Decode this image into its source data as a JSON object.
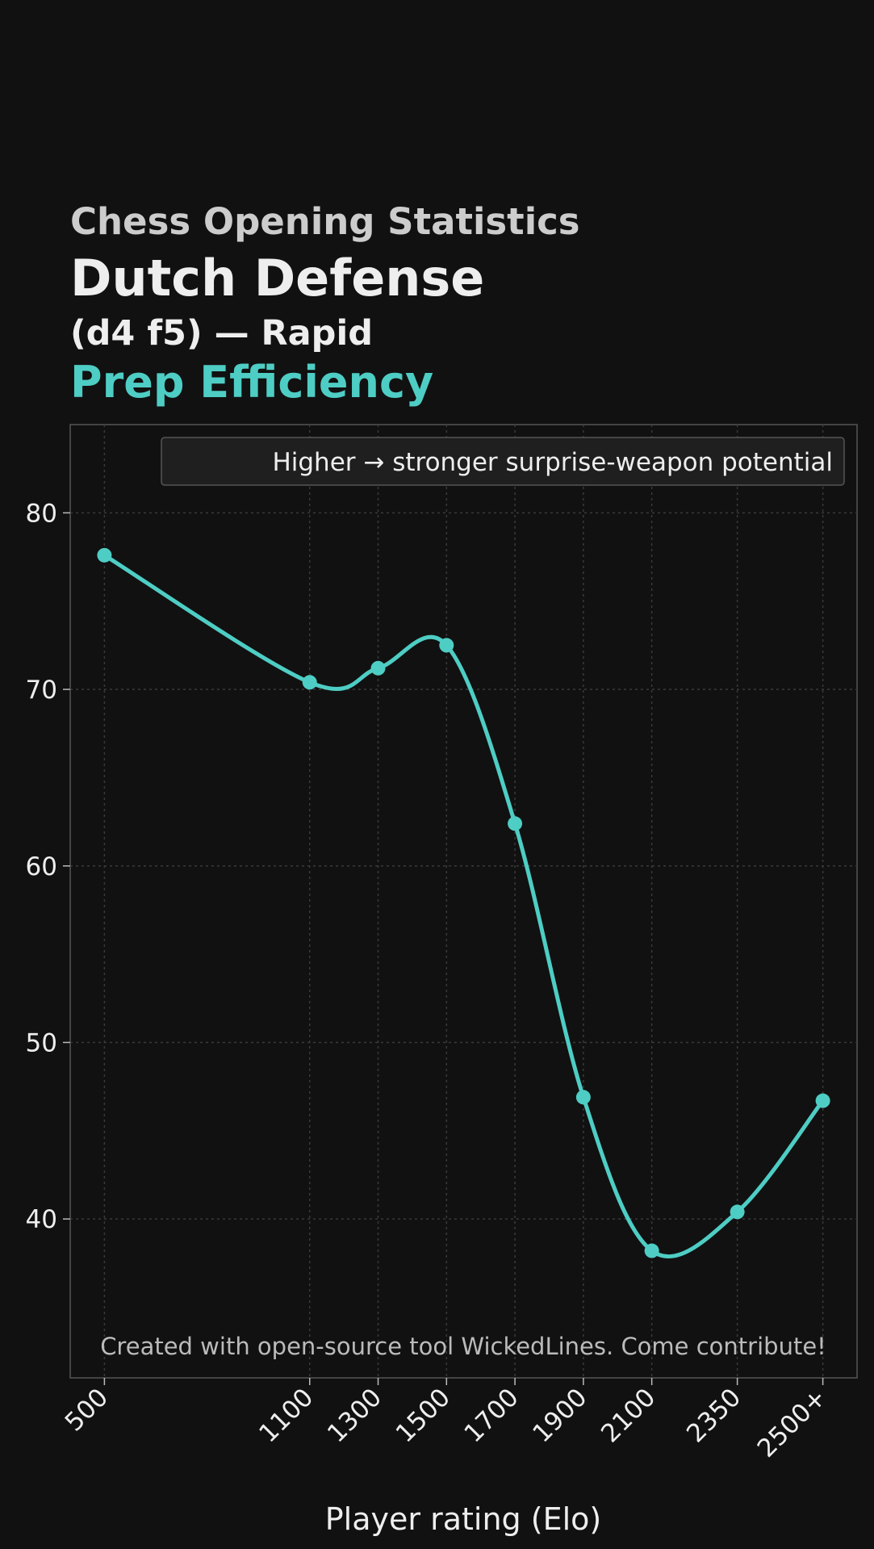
{
  "header": {
    "supertitle": "Chess Opening Statistics",
    "title": "Dutch Defense",
    "subtitle": "(d4 f5) — Rapid",
    "metric": "Prep Efficiency"
  },
  "colors": {
    "background": "#111111",
    "line": "#4ecdc4",
    "grid": "#3a3a3a",
    "frame": "#555555",
    "text": "#eeeeee",
    "watermark": "#bbbbbb"
  },
  "chart_data": {
    "type": "line",
    "title": "Prep Efficiency",
    "xlabel": "Player rating (Elo)",
    "ylabel": "",
    "x_numeric": [
      500,
      1100,
      1300,
      1500,
      1700,
      1900,
      2100,
      2350,
      2600
    ],
    "categories": [
      "500",
      "1100",
      "1300",
      "1500",
      "1700",
      "1900",
      "2100",
      "2350",
      "2500+"
    ],
    "series": [
      {
        "values": [
          77.6,
          70.4,
          71.2,
          72.5,
          62.4,
          46.9,
          38.2,
          40.4,
          46.7
        ]
      }
    ],
    "xlim": [
      400,
      2700
    ],
    "ylim": [
      31,
      85
    ],
    "yticks": [
      40,
      50,
      60,
      70,
      80
    ],
    "grid": true,
    "legend": {
      "text": "Higher → stronger surprise-weapon potential",
      "position": "top-right"
    },
    "annotation": "Created with open-source tool WickedLines. Come contribute!"
  }
}
